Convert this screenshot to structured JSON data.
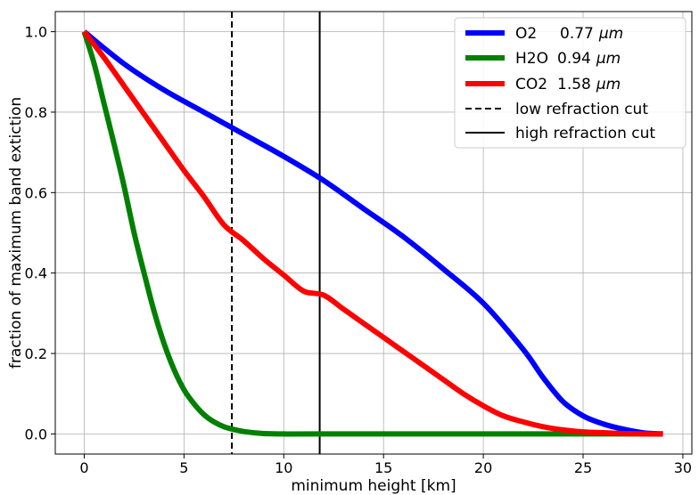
{
  "chart_data": {
    "type": "line",
    "title": "",
    "xlabel": "minimum height [km]",
    "ylabel": "fraction of maximum band extiction",
    "xlim": [
      -1.45,
      30.45
    ],
    "ylim": [
      -0.05,
      1.05
    ],
    "grid": true,
    "legend_position": "top-right",
    "xticks": [
      0,
      5,
      10,
      15,
      20,
      25,
      30
    ],
    "xtick_labels": [
      "0",
      "5",
      "10",
      "15",
      "20",
      "25",
      "30"
    ],
    "yticks": [
      0.0,
      0.2,
      0.4,
      0.6,
      0.8,
      1.0
    ],
    "ytick_labels": [
      "0.0",
      "0.2",
      "0.4",
      "0.6",
      "0.8",
      "1.0"
    ],
    "series": [
      {
        "name": "O2",
        "wavelength": "0.77",
        "unit": "μm",
        "color": "#0000ff",
        "x": [
          0,
          2,
          4,
          6,
          8,
          10,
          12,
          14,
          16,
          18,
          20,
          22,
          23,
          24,
          25,
          26,
          27,
          28,
          29
        ],
        "y": [
          1.0,
          0.92,
          0.855,
          0.8,
          0.745,
          0.69,
          0.63,
          0.56,
          0.49,
          0.41,
          0.325,
          0.21,
          0.14,
          0.08,
          0.045,
          0.025,
          0.012,
          0.003,
          0.0
        ]
      },
      {
        "name": "H2O",
        "wavelength": "0.94",
        "unit": "μm",
        "color": "#008000",
        "x": [
          0,
          0.5,
          1,
          1.5,
          2,
          2.5,
          3,
          3.5,
          4,
          4.5,
          5,
          5.5,
          6,
          6.5,
          7,
          7.5,
          8,
          8.5,
          9,
          10,
          12,
          29
        ],
        "y": [
          1.0,
          0.92,
          0.82,
          0.72,
          0.615,
          0.5,
          0.4,
          0.305,
          0.225,
          0.16,
          0.11,
          0.075,
          0.048,
          0.03,
          0.018,
          0.011,
          0.006,
          0.003,
          0.001,
          0.0,
          0.0,
          0.0
        ]
      },
      {
        "name": "CO2",
        "wavelength": "1.58",
        "unit": "μm",
        "color": "#ff0000",
        "x": [
          0,
          1,
          2,
          3,
          4,
          5,
          6,
          7,
          8,
          9,
          10,
          11,
          12,
          13,
          14,
          15,
          16,
          17,
          18,
          19,
          20,
          21,
          22,
          23,
          24,
          25,
          26,
          27,
          28,
          29
        ],
        "y": [
          1.0,
          0.935,
          0.865,
          0.795,
          0.725,
          0.655,
          0.59,
          0.52,
          0.48,
          0.435,
          0.395,
          0.355,
          0.345,
          0.31,
          0.275,
          0.24,
          0.205,
          0.17,
          0.135,
          0.1,
          0.07,
          0.045,
          0.03,
          0.018,
          0.01,
          0.005,
          0.003,
          0.001,
          0.0,
          0.0
        ]
      }
    ],
    "vlines": [
      {
        "name": "low refraction cut",
        "x": 7.4,
        "style": "dashed",
        "color": "#000000"
      },
      {
        "name": "high refraction cut",
        "x": 11.8,
        "style": "solid",
        "color": "#000000"
      }
    ]
  }
}
